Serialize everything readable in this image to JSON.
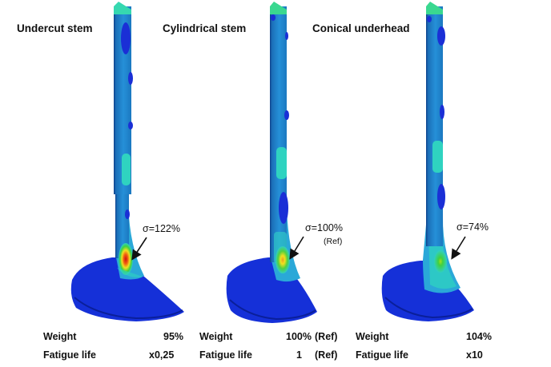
{
  "figure": {
    "panels": [
      {
        "id": "undercut",
        "title": "Undercut stem",
        "stress_label": "σ=122%",
        "stress_note": "",
        "weight_label": "Weight",
        "weight_value": "95%",
        "weight_ref": "",
        "fatigue_label": "Fatigue life",
        "fatigue_value": "x0,25",
        "fatigue_ref": ""
      },
      {
        "id": "cylindrical",
        "title": "Cylindrical stem",
        "stress_label": "σ=100%",
        "stress_note": "(Ref)",
        "weight_label": "Weight",
        "weight_value": "100%",
        "weight_ref": "(Ref)",
        "fatigue_label": "Fatigue life",
        "fatigue_value": "1",
        "fatigue_ref": "(Ref)"
      },
      {
        "id": "conical",
        "title": "Conical underhead",
        "stress_label": "σ=74%",
        "stress_note": "",
        "weight_label": "Weight",
        "weight_value": "104%",
        "weight_ref": "",
        "fatigue_label": "Fatigue life",
        "fatigue_value": "x10",
        "fatigue_ref": ""
      }
    ],
    "colors": {
      "stem_base": "#1e7fc8",
      "low_stress": "#1a2fd6",
      "mid_stress": "#2fd3c0",
      "green": "#3fd43a",
      "yellow": "#f0e020",
      "red": "#e02010",
      "head": "#1530d8"
    }
  }
}
